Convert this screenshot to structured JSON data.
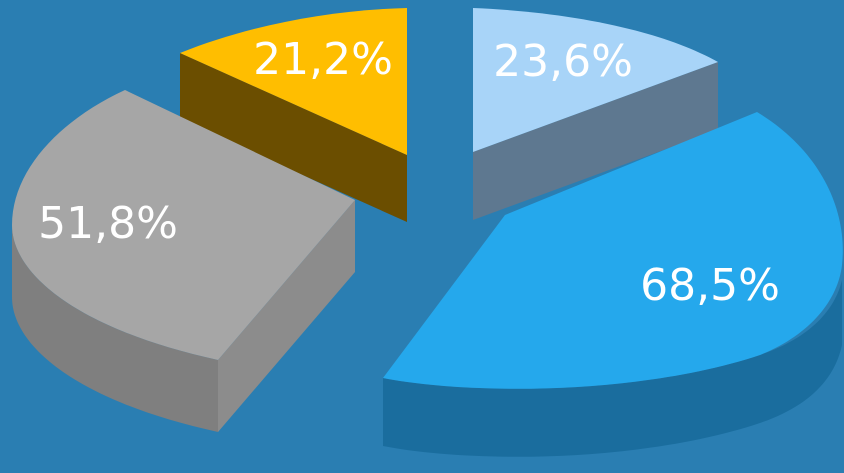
{
  "chart_data": {
    "type": "pie",
    "three_d": true,
    "exploded": true,
    "title": "",
    "slices": [
      {
        "label": "23,6%",
        "value": 23.6,
        "color": "#a8d4f8",
        "side_color": "#5e7890"
      },
      {
        "label": "68,5%",
        "value": 68.5,
        "color": "#25a8ec",
        "side_color": "#1a6d9e"
      },
      {
        "label": "51,8%",
        "value": 51.8,
        "color": "#a6a6a6",
        "side_color": "#7a7a7a"
      },
      {
        "label": "21,2%",
        "value": 21.2,
        "color": "#ffbe00",
        "side_color": "#6b4e00"
      }
    ]
  }
}
